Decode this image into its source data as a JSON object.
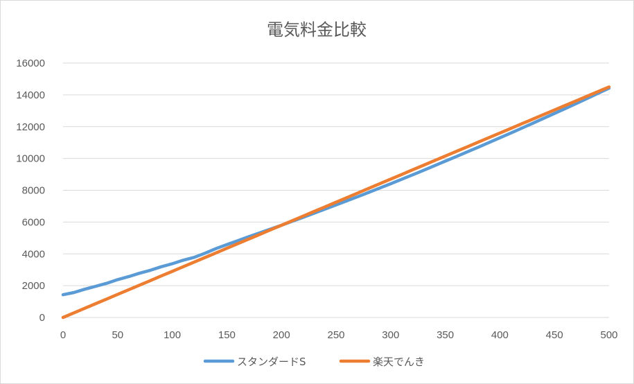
{
  "chart_data": {
    "type": "line",
    "title": "電気料金比較",
    "xlabel": "",
    "ylabel": "",
    "x": [
      0,
      10,
      20,
      30,
      40,
      50,
      60,
      70,
      80,
      90,
      100,
      110,
      120,
      130,
      140,
      150,
      160,
      170,
      180,
      190,
      200,
      210,
      220,
      230,
      240,
      250,
      260,
      270,
      280,
      290,
      300,
      310,
      320,
      330,
      340,
      350,
      360,
      370,
      380,
      390,
      400,
      410,
      420,
      430,
      440,
      450,
      460,
      470,
      480,
      490,
      500
    ],
    "xlim": [
      0,
      500
    ],
    "ylim": [
      0,
      16000
    ],
    "x_ticks": [
      "0",
      "50",
      "100",
      "150",
      "200",
      "250",
      "300",
      "350",
      "400",
      "450",
      "500"
    ],
    "y_ticks": [
      "0",
      "2000",
      "4000",
      "6000",
      "8000",
      "10000",
      "12000",
      "14000",
      "16000"
    ],
    "grid": true,
    "legend_position": "bottom",
    "series": [
      {
        "name": "スタンダードS",
        "color": "#5b9bd5",
        "values": [
          1430,
          1570,
          1780,
          1960,
          2150,
          2380,
          2570,
          2780,
          2970,
          3190,
          3380,
          3600,
          3780,
          4040,
          4330,
          4580,
          4830,
          5080,
          5320,
          5560,
          5800,
          6050,
          6300,
          6560,
          6820,
          7080,
          7340,
          7600,
          7870,
          8140,
          8410,
          8690,
          8970,
          9250,
          9540,
          9830,
          10120,
          10410,
          10700,
          11000,
          11300,
          11600,
          11900,
          12210,
          12520,
          12830,
          13140,
          13460,
          13780,
          14100,
          14420
        ]
      },
      {
        "name": "楽天でんき",
        "color": "#ed7d31",
        "values": [
          0,
          290,
          580,
          870,
          1160,
          1450,
          1740,
          2030,
          2320,
          2610,
          2900,
          3190,
          3480,
          3770,
          4060,
          4350,
          4640,
          4930,
          5220,
          5510,
          5800,
          6090,
          6380,
          6670,
          6960,
          7250,
          7540,
          7830,
          8120,
          8410,
          8700,
          8990,
          9280,
          9570,
          9860,
          10150,
          10440,
          10730,
          11020,
          11310,
          11600,
          11890,
          12180,
          12470,
          12760,
          13050,
          13340,
          13630,
          13920,
          14210,
          14500
        ]
      }
    ]
  }
}
